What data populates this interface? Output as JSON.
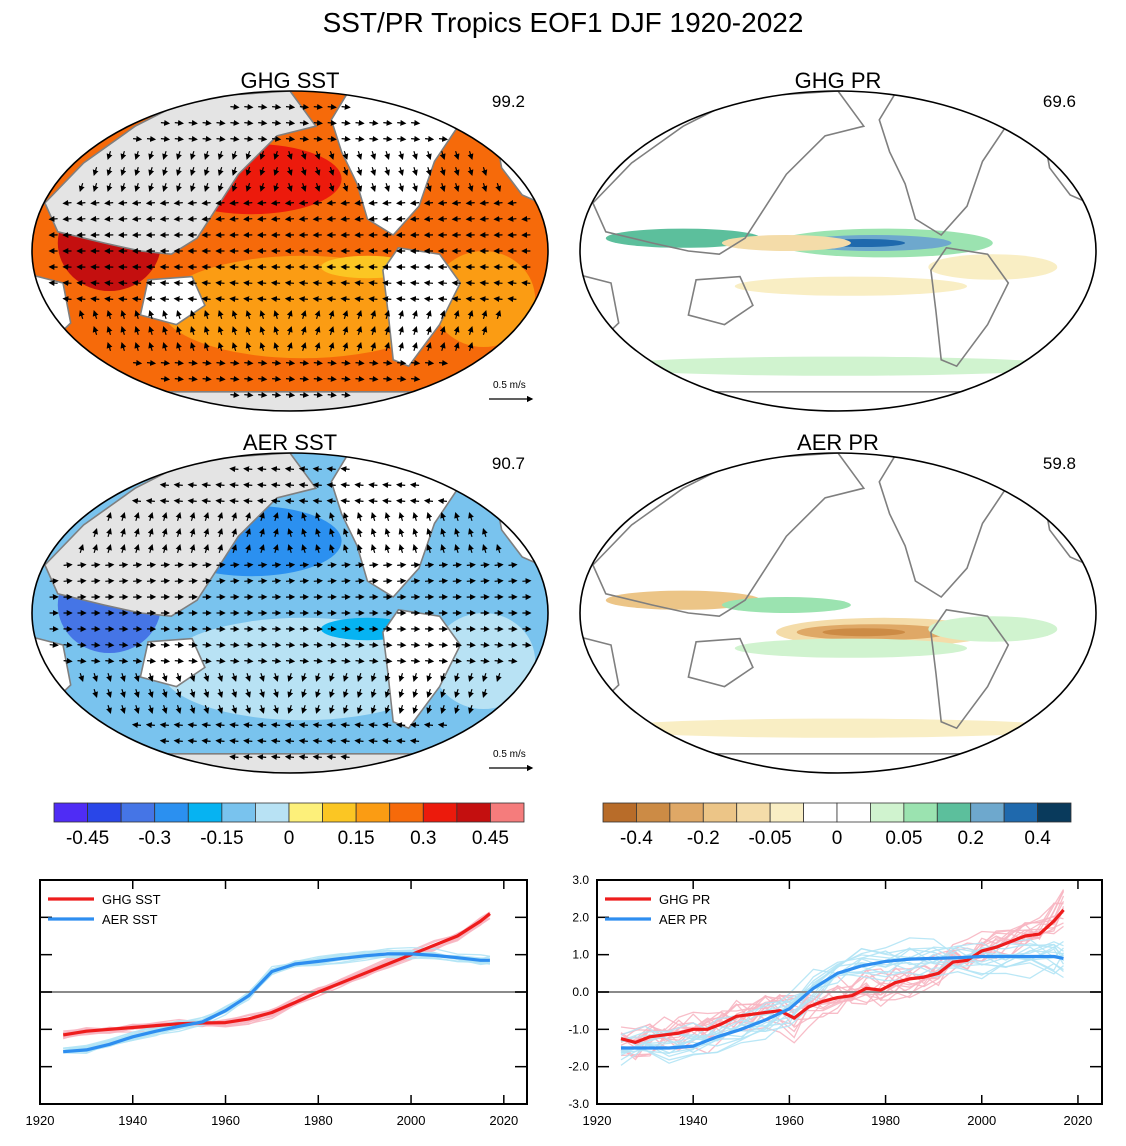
{
  "figure": {
    "title": "SST/PR Tropics EOF1 DJF 1920-2022",
    "wind_scale_label": "0.5 m/s"
  },
  "maps": [
    {
      "id": "ghg-sst",
      "title": "GHG SST",
      "pct": "99.2",
      "kind": "sst",
      "polarity": 1,
      "vectors": true
    },
    {
      "id": "ghg-pr",
      "title": "GHG PR",
      "pct": "69.6",
      "kind": "pr",
      "polarity": 1,
      "vectors": false
    },
    {
      "id": "aer-sst",
      "title": "AER SST",
      "pct": "90.7",
      "kind": "sst",
      "polarity": -1,
      "vectors": true
    },
    {
      "id": "aer-pr",
      "title": "AER PR",
      "pct": "59.8",
      "kind": "pr",
      "polarity": -1,
      "vectors": false
    }
  ],
  "colorbars": [
    {
      "id": "sst",
      "colors": [
        "#4f2cf5",
        "#2946e8",
        "#4575e6",
        "#2b90f0",
        "#06b3f2",
        "#79c3ee",
        "#b8e2f4",
        "#fdf07a",
        "#fbc623",
        "#fb9c13",
        "#f66a0a",
        "#ec1a0c",
        "#c40f0f",
        "#f57c7c"
      ],
      "labels": [
        "-0.45",
        "-0.3",
        "-0.15",
        "0",
        "0.15",
        "0.3",
        "0.45"
      ]
    },
    {
      "id": "pr",
      "colors": [
        "#b86c29",
        "#cc8b45",
        "#dfa866",
        "#ecc587",
        "#f4dca9",
        "#f9eec4",
        "#ffffff",
        "#ffffff",
        "#d0f3cf",
        "#9be3b0",
        "#5cbf9c",
        "#6ea8cd",
        "#1f69ad",
        "#093a5c"
      ],
      "labels": [
        "-0.4",
        "-0.2",
        "-0.05",
        "0",
        "0.05",
        "0.2",
        "0.4"
      ]
    }
  ],
  "chart_data": [
    {
      "type": "line",
      "id": "sst-timeseries",
      "xlim": [
        1920,
        2025
      ],
      "ylim": [
        -3.0,
        3.0
      ],
      "xticks": [
        1920,
        1940,
        1960,
        1980,
        2000,
        2020
      ],
      "yticks": [
        -3.0,
        -2.0,
        -1.0,
        0.0,
        1.0,
        2.0,
        3.0
      ],
      "grid": false,
      "legend_position": "top-left",
      "series": [
        {
          "name": "GHG SST",
          "color": "#ee1c1c",
          "x": [
            1925,
            1930,
            1935,
            1940,
            1945,
            1950,
            1955,
            1960,
            1965,
            1970,
            1975,
            1980,
            1985,
            1990,
            1995,
            2000,
            2005,
            2010,
            2015,
            2017
          ],
          "y": [
            -1.15,
            -1.05,
            -1.0,
            -0.95,
            -0.9,
            -0.85,
            -0.83,
            -0.82,
            -0.72,
            -0.55,
            -0.28,
            0.0,
            0.25,
            0.5,
            0.75,
            1.0,
            1.25,
            1.5,
            1.9,
            2.1
          ]
        },
        {
          "name": "AER SST",
          "color": "#2e8ef0",
          "x": [
            1925,
            1930,
            1935,
            1940,
            1945,
            1950,
            1955,
            1960,
            1965,
            1970,
            1975,
            1980,
            1985,
            1990,
            1995,
            2000,
            2005,
            2010,
            2015,
            2017
          ],
          "y": [
            -1.6,
            -1.55,
            -1.4,
            -1.2,
            -1.05,
            -0.92,
            -0.8,
            -0.5,
            -0.1,
            0.55,
            0.75,
            0.82,
            0.9,
            0.97,
            1.02,
            1.02,
            0.98,
            0.92,
            0.85,
            0.85
          ]
        }
      ]
    },
    {
      "type": "line",
      "id": "pr-timeseries",
      "xlim": [
        1920,
        2025
      ],
      "ylim": [
        -3.0,
        3.0
      ],
      "xticks": [
        1920,
        1940,
        1960,
        1980,
        2000,
        2020
      ],
      "yticks": [
        -3.0,
        -2.0,
        -1.0,
        0.0,
        1.0,
        2.0,
        3.0
      ],
      "grid": false,
      "legend_position": "top-left",
      "series": [
        {
          "name": "GHG PR",
          "color": "#ee1c1c",
          "x": [
            1925,
            1928,
            1931,
            1934,
            1937,
            1940,
            1943,
            1946,
            1949,
            1952,
            1955,
            1958,
            1961,
            1964,
            1967,
            1970,
            1973,
            1976,
            1979,
            1982,
            1985,
            1988,
            1991,
            1994,
            1997,
            2000,
            2003,
            2006,
            2009,
            2012,
            2015,
            2017
          ],
          "y": [
            -1.25,
            -1.35,
            -1.2,
            -1.15,
            -1.1,
            -1.0,
            -1.0,
            -0.85,
            -0.65,
            -0.6,
            -0.55,
            -0.5,
            -0.7,
            -0.4,
            -0.25,
            -0.15,
            -0.1,
            0.1,
            0.05,
            0.25,
            0.35,
            0.4,
            0.5,
            0.8,
            0.85,
            1.1,
            1.2,
            1.35,
            1.5,
            1.55,
            1.9,
            2.2
          ]
        },
        {
          "name": "AER PR",
          "color": "#2e8ef0",
          "x": [
            1925,
            1930,
            1935,
            1940,
            1945,
            1950,
            1955,
            1960,
            1965,
            1970,
            1975,
            1980,
            1985,
            1990,
            1995,
            2000,
            2005,
            2010,
            2015,
            2017
          ],
          "y": [
            -1.5,
            -1.5,
            -1.5,
            -1.45,
            -1.2,
            -1.0,
            -0.75,
            -0.45,
            0.1,
            0.5,
            0.7,
            0.82,
            0.88,
            0.9,
            0.92,
            0.95,
            0.95,
            0.95,
            0.95,
            0.9
          ]
        }
      ]
    }
  ]
}
